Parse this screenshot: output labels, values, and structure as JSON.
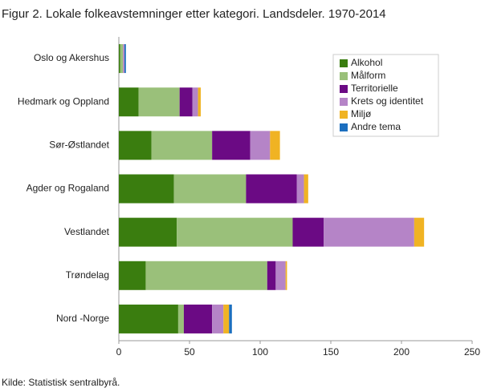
{
  "chart_data": {
    "type": "stacked-barh",
    "title": "Figur 2. Lokale folkeavstemninger etter kategori. Landsdeler. 1970-2014",
    "source": "Kilde: Statistisk sentralbyrå.",
    "categories": [
      "Oslo og Akershus",
      "Hedmark og Oppland",
      "Sør-Østlandet",
      "Agder og Rogaland",
      "Vestlandet",
      "Trøndelag",
      "Nord -Norge"
    ],
    "series": [
      {
        "name": "Alkohol",
        "color": "#3a7d0f",
        "values": [
          1,
          14,
          23,
          39,
          41,
          19,
          42
        ]
      },
      {
        "name": "Målform",
        "color": "#9ac07a",
        "values": [
          2,
          29,
          43,
          51,
          82,
          86,
          4
        ]
      },
      {
        "name": "Territorielle",
        "color": "#6b0a84",
        "values": [
          0,
          9,
          27,
          36,
          22,
          6,
          20
        ]
      },
      {
        "name": "Krets og identitet",
        "color": "#b584c7",
        "values": [
          1,
          4,
          14,
          5,
          64,
          7,
          8
        ]
      },
      {
        "name": "Miljø",
        "color": "#f0b323",
        "values": [
          0,
          2,
          7,
          3,
          7,
          1,
          4
        ]
      },
      {
        "name": "Andre tema",
        "color": "#1c6fbf",
        "values": [
          1,
          0,
          0,
          0,
          0,
          0,
          2
        ]
      }
    ],
    "xlim": [
      0,
      250
    ],
    "xticks": [
      0,
      50,
      100,
      150,
      200,
      250
    ],
    "grid": false,
    "legend": "upper right"
  }
}
